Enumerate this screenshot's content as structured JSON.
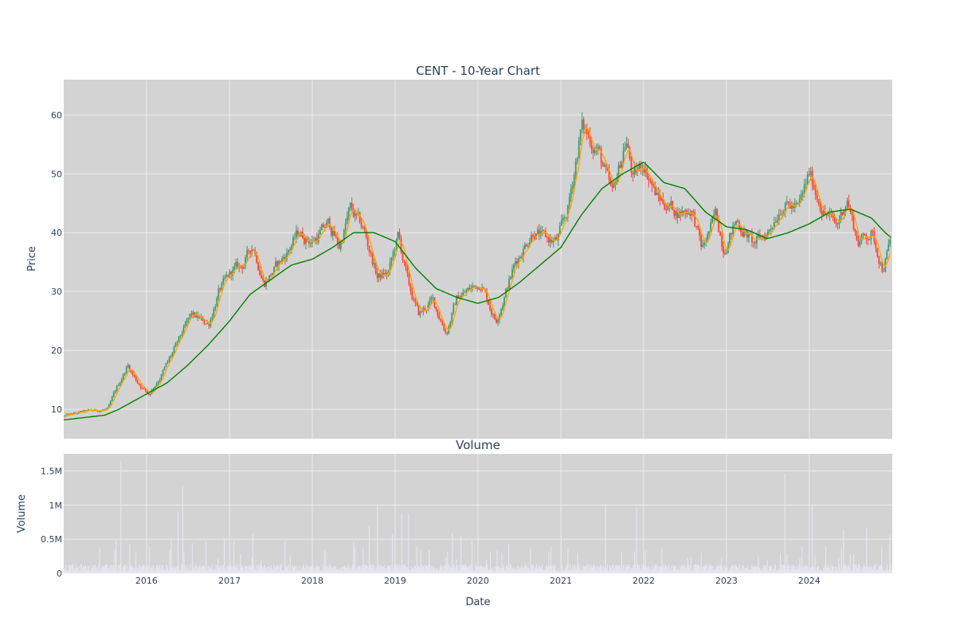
{
  "chart_data": {
    "type": "candlestick",
    "title": "CENT - 10-Year Chart",
    "xlabel": "Date",
    "colors": {
      "background": "#d3d3d3",
      "up": "#3d9970",
      "down": "#ff4136",
      "ma_short": "#ffa500",
      "ma_long": "#008000",
      "volume": "#e5e5f0",
      "text": "#2a3f5f"
    },
    "x_range": [
      "2015-01-01",
      "2025-01-01"
    ],
    "x_ticks": [
      "2016-01-01",
      "2017-01-01",
      "2018-01-01",
      "2019-01-01",
      "2020-01-01",
      "2021-01-01",
      "2022-01-01",
      "2023-01-01",
      "2024-01-01"
    ],
    "x_tick_labels": [
      "2016",
      "2017",
      "2018",
      "2019",
      "2020",
      "2021",
      "2022",
      "2023",
      "2024"
    ],
    "price_panel": {
      "ylabel": "Price",
      "ylim": [
        5,
        66
      ],
      "y_ticks": [
        10,
        20,
        30,
        40,
        50,
        60
      ],
      "y_tick_labels": [
        "10",
        "20",
        "30",
        "40",
        "50",
        "60"
      ],
      "price_points": [
        [
          "2015-01-01",
          8.8
        ],
        [
          "2015-04-01",
          9.6
        ],
        [
          "2015-07-15",
          10.0
        ],
        [
          "2015-08-15",
          13.0
        ],
        [
          "2015-10-10",
          17.5
        ],
        [
          "2015-11-15",
          15.0
        ],
        [
          "2016-01-10",
          12.5
        ],
        [
          "2016-03-01",
          15.5
        ],
        [
          "2016-05-01",
          20.0
        ],
        [
          "2016-07-15",
          26.0
        ],
        [
          "2016-10-01",
          24.5
        ],
        [
          "2016-11-15",
          30.0
        ],
        [
          "2017-01-15",
          33.5
        ],
        [
          "2017-03-01",
          34.5
        ],
        [
          "2017-04-15",
          38.0
        ],
        [
          "2017-06-01",
          31.5
        ],
        [
          "2017-09-01",
          36.0
        ],
        [
          "2017-11-01",
          40.0
        ],
        [
          "2018-01-01",
          38.5
        ],
        [
          "2018-03-15",
          41.5
        ],
        [
          "2018-05-01",
          37.5
        ],
        [
          "2018-06-15",
          44.0
        ],
        [
          "2018-08-15",
          40.5
        ],
        [
          "2018-10-15",
          32.5
        ],
        [
          "2018-12-01",
          33.0
        ],
        [
          "2019-01-15",
          39.5
        ],
        [
          "2019-03-01",
          31.0
        ],
        [
          "2019-04-15",
          26.0
        ],
        [
          "2019-06-15",
          28.5
        ],
        [
          "2019-08-15",
          23.0
        ],
        [
          "2019-10-01",
          29.0
        ],
        [
          "2019-12-01",
          30.5
        ],
        [
          "2020-01-15",
          31.5
        ],
        [
          "2020-03-20",
          25.0
        ],
        [
          "2020-06-15",
          35.0
        ],
        [
          "2020-09-01",
          40.5
        ],
        [
          "2020-10-15",
          39.0
        ],
        [
          "2020-12-15",
          38.5
        ],
        [
          "2021-02-01",
          44.0
        ],
        [
          "2021-04-01",
          58.0
        ],
        [
          "2021-06-15",
          54.0
        ],
        [
          "2021-08-15",
          46.0
        ],
        [
          "2021-10-15",
          56.0
        ],
        [
          "2021-11-15",
          49.0
        ],
        [
          "2022-01-01",
          52.0
        ],
        [
          "2022-03-01",
          46.0
        ],
        [
          "2022-06-01",
          43.5
        ],
        [
          "2022-08-01",
          44.0
        ],
        [
          "2022-09-15",
          37.0
        ],
        [
          "2022-11-15",
          43.0
        ],
        [
          "2022-12-20",
          37.5
        ],
        [
          "2023-02-15",
          42.0
        ],
        [
          "2023-05-01",
          38.0
        ],
        [
          "2023-07-01",
          40.0
        ],
        [
          "2023-09-01",
          45.0
        ],
        [
          "2023-11-15",
          44.0
        ],
        [
          "2024-01-01",
          50.0
        ],
        [
          "2024-03-01",
          44.0
        ],
        [
          "2024-05-01",
          41.0
        ],
        [
          "2024-06-15",
          46.0
        ],
        [
          "2024-08-01",
          38.5
        ],
        [
          "2024-10-01",
          40.0
        ],
        [
          "2024-11-20",
          34.0
        ],
        [
          "2025-01-01",
          39.5
        ]
      ],
      "ma_long_points": [
        [
          "2015-01-01",
          8.2
        ],
        [
          "2015-07-01",
          9.0
        ],
        [
          "2015-09-01",
          10.0
        ],
        [
          "2016-01-01",
          12.6
        ],
        [
          "2016-04-01",
          14.5
        ],
        [
          "2016-07-01",
          17.5
        ],
        [
          "2016-10-01",
          21.0
        ],
        [
          "2017-01-01",
          25.0
        ],
        [
          "2017-04-01",
          29.5
        ],
        [
          "2017-07-01",
          32.0
        ],
        [
          "2017-10-01",
          34.5
        ],
        [
          "2018-01-01",
          35.5
        ],
        [
          "2018-04-01",
          37.5
        ],
        [
          "2018-07-01",
          40.0
        ],
        [
          "2018-10-01",
          40.0
        ],
        [
          "2019-01-01",
          38.5
        ],
        [
          "2019-04-01",
          34.0
        ],
        [
          "2019-07-01",
          30.5
        ],
        [
          "2019-10-01",
          29.0
        ],
        [
          "2020-01-01",
          28.0
        ],
        [
          "2020-04-01",
          29.0
        ],
        [
          "2020-07-01",
          31.5
        ],
        [
          "2020-10-01",
          34.5
        ],
        [
          "2021-01-01",
          37.5
        ],
        [
          "2021-04-01",
          43.0
        ],
        [
          "2021-07-01",
          47.5
        ],
        [
          "2021-10-01",
          50.0
        ],
        [
          "2022-01-01",
          52.0
        ],
        [
          "2022-04-01",
          48.5
        ],
        [
          "2022-07-01",
          47.5
        ],
        [
          "2022-10-01",
          43.5
        ],
        [
          "2023-01-01",
          41.0
        ],
        [
          "2023-04-01",
          40.5
        ],
        [
          "2023-07-01",
          39.0
        ],
        [
          "2023-10-01",
          40.0
        ],
        [
          "2024-01-01",
          41.5
        ],
        [
          "2024-04-01",
          43.5
        ],
        [
          "2024-07-01",
          44.0
        ],
        [
          "2024-10-01",
          42.5
        ],
        [
          "2024-12-01",
          40.0
        ],
        [
          "2025-01-01",
          39.0
        ]
      ]
    },
    "volume_panel": {
      "title": "Volume",
      "ylabel": "Volume",
      "ylim": [
        0,
        1750000
      ],
      "y_ticks": [
        0,
        500000,
        1000000,
        1500000
      ],
      "y_tick_labels": [
        "0",
        "0.5M",
        "1M",
        "1.5M"
      ],
      "typical_level": 90000,
      "spikes": [
        [
          "2015-09-10",
          1650000
        ],
        [
          "2015-08-20",
          480000
        ],
        [
          "2015-10-20",
          420000
        ],
        [
          "2016-01-15",
          400000
        ],
        [
          "2016-04-20",
          520000
        ],
        [
          "2016-05-20",
          900000
        ],
        [
          "2016-06-10",
          1270000
        ],
        [
          "2016-07-20",
          440000
        ],
        [
          "2016-09-20",
          450000
        ],
        [
          "2016-12-10",
          520000
        ],
        [
          "2017-01-20",
          470000
        ],
        [
          "2017-04-15",
          580000
        ],
        [
          "2017-09-01",
          460000
        ],
        [
          "2018-03-01",
          320000
        ],
        [
          "2018-07-01",
          460000
        ],
        [
          "2018-09-10",
          700000
        ],
        [
          "2018-10-15",
          1000000
        ],
        [
          "2018-12-20",
          570000
        ],
        [
          "2019-02-01",
          880000
        ],
        [
          "2019-03-01",
          880000
        ],
        [
          "2019-06-01",
          340000
        ],
        [
          "2019-09-10",
          590000
        ],
        [
          "2019-10-20",
          550000
        ],
        [
          "2019-12-05",
          470000
        ],
        [
          "2020-03-25",
          330000
        ],
        [
          "2020-05-15",
          420000
        ],
        [
          "2020-11-10",
          320000
        ],
        [
          "2021-01-01",
          550000
        ],
        [
          "2021-03-15",
          300000
        ],
        [
          "2021-07-15",
          1020000
        ],
        [
          "2021-12-01",
          960000
        ],
        [
          "2022-07-15",
          220000
        ],
        [
          "2022-12-10",
          240000
        ],
        [
          "2023-07-01",
          180000
        ],
        [
          "2023-09-15",
          1460000
        ],
        [
          "2023-11-20",
          220000
        ],
        [
          "2024-01-15",
          1000000
        ],
        [
          "2024-03-15",
          400000
        ],
        [
          "2024-06-01",
          640000
        ],
        [
          "2024-09-10",
          660000
        ],
        [
          "2024-11-15",
          380000
        ],
        [
          "2024-12-20",
          560000
        ]
      ]
    }
  }
}
